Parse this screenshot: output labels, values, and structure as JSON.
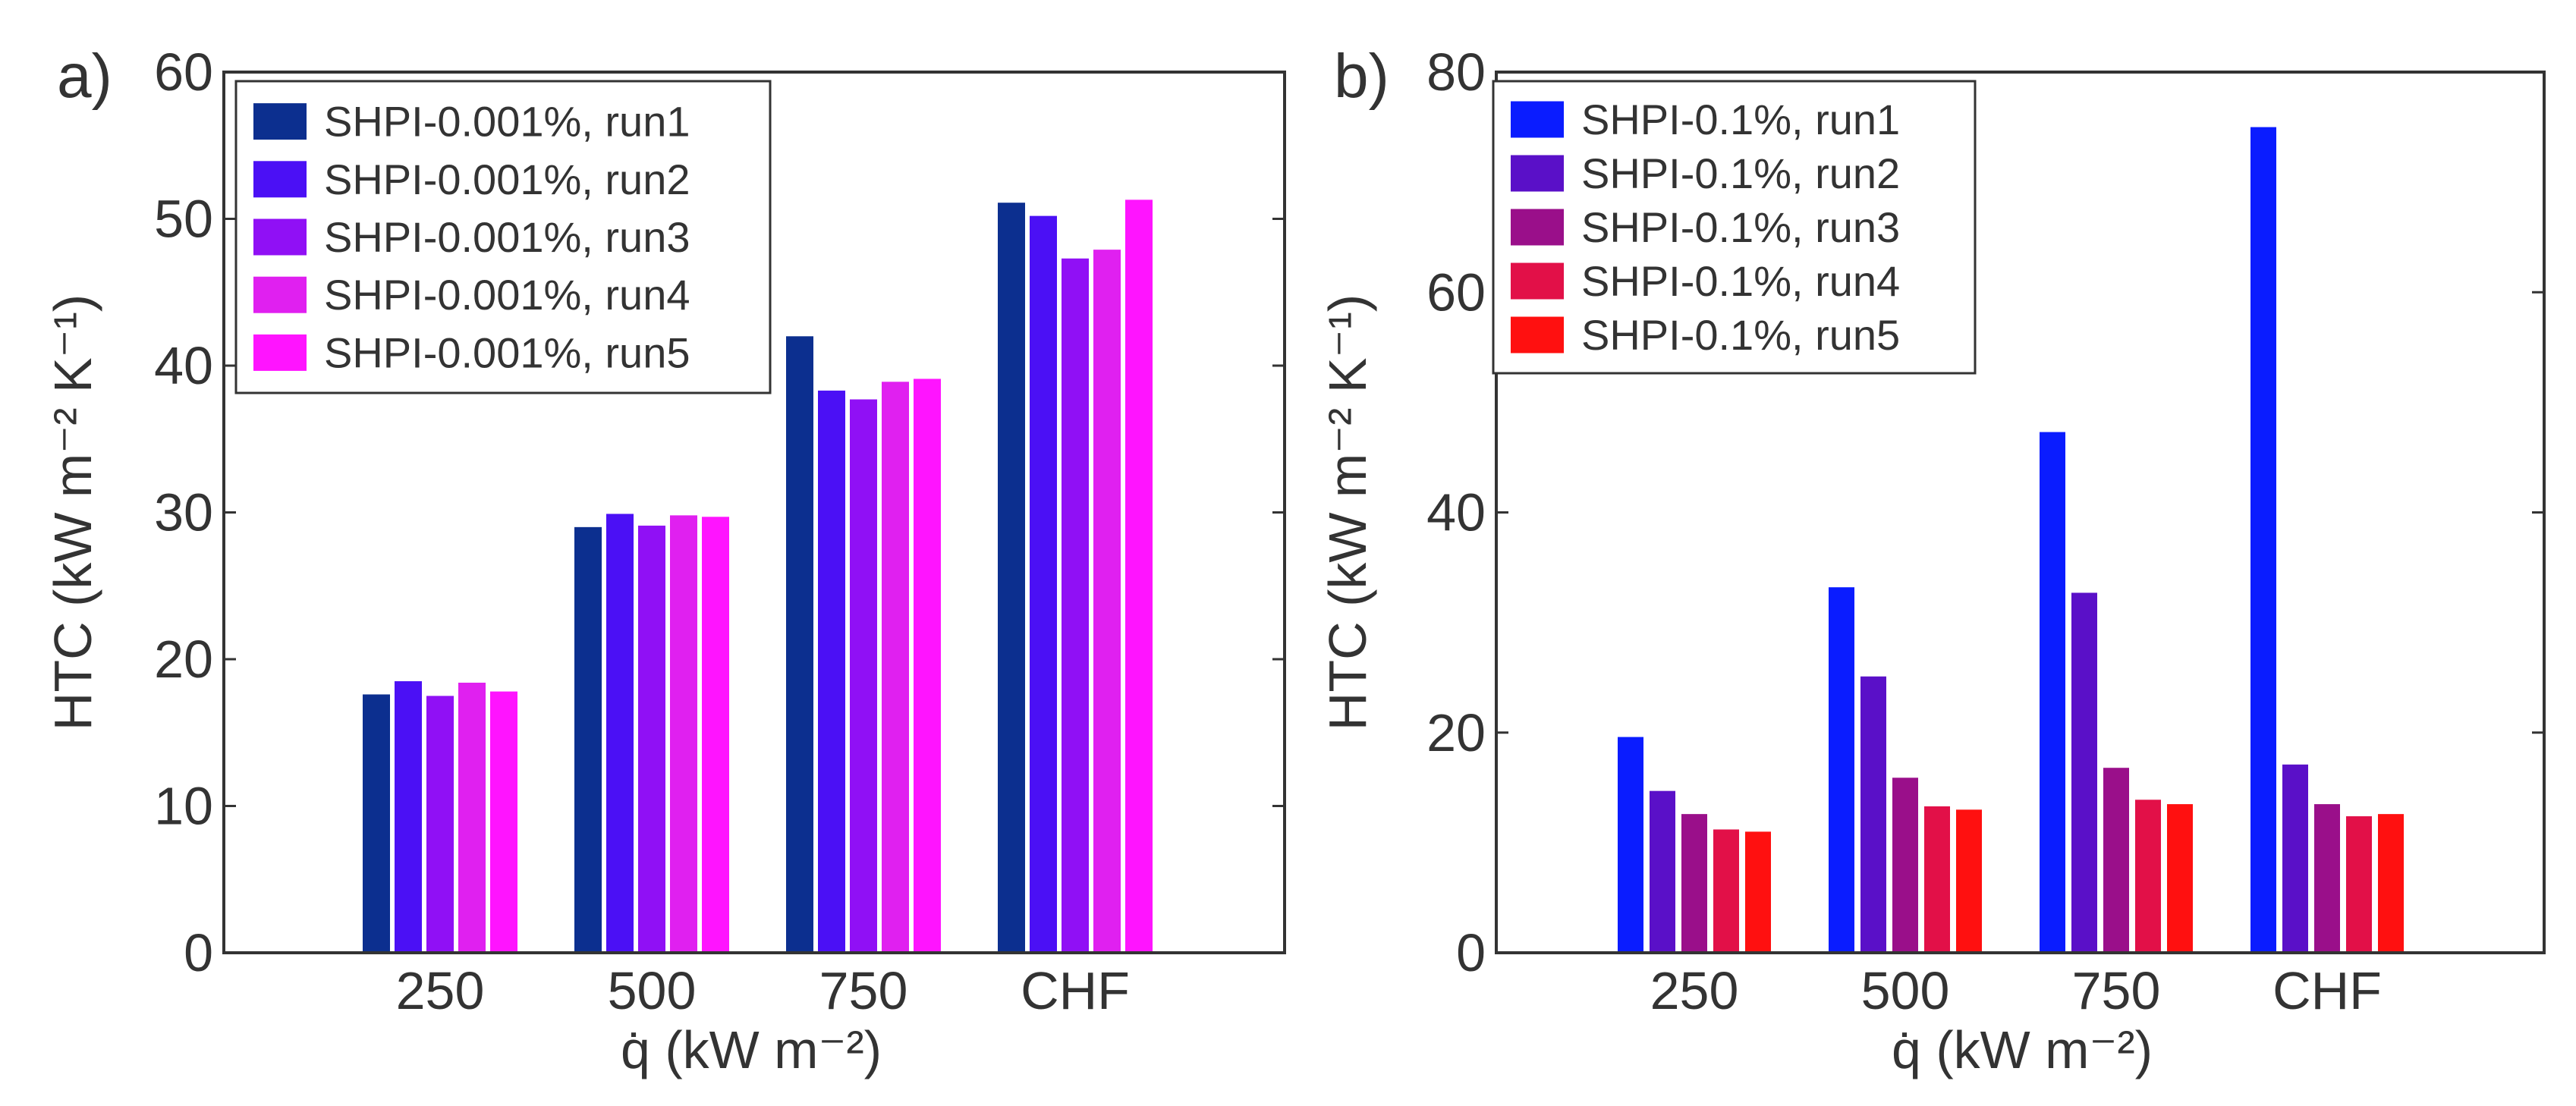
{
  "chart_data": [
    {
      "type": "bar",
      "panel_label": "a)",
      "categories": [
        "250",
        "500",
        "750",
        "CHF"
      ],
      "xlabel": "q̇ (kW m⁻²)",
      "ylabel": "HTC (kW m⁻² K⁻¹)",
      "ylim": [
        0,
        60
      ],
      "yticks": [
        0,
        10,
        20,
        30,
        40,
        50,
        60
      ],
      "grid": false,
      "legend_position": "top-left",
      "series": [
        {
          "name": "SHPI-0.001%, run1",
          "color": "#0c2f8f",
          "values": [
            17.6,
            29.0,
            42.0,
            51.1
          ]
        },
        {
          "name": "SHPI-0.001%, run2",
          "color": "#4b10f5",
          "values": [
            18.5,
            29.9,
            38.3,
            50.2
          ]
        },
        {
          "name": "SHPI-0.001%, run3",
          "color": "#9010f5",
          "values": [
            17.5,
            29.1,
            37.7,
            47.3
          ]
        },
        {
          "name": "SHPI-0.001%, run4",
          "color": "#e020f0",
          "values": [
            18.4,
            29.8,
            38.9,
            47.9
          ]
        },
        {
          "name": "SHPI-0.001%, run5",
          "color": "#ff14ff",
          "values": [
            17.8,
            29.7,
            39.1,
            51.3
          ]
        }
      ]
    },
    {
      "type": "bar",
      "panel_label": "b)",
      "categories": [
        "250",
        "500",
        "750",
        "CHF"
      ],
      "xlabel": "q̇ (kW m⁻²)",
      "ylabel": "HTC (kW m⁻² K⁻¹)",
      "ylim": [
        0,
        80
      ],
      "yticks": [
        0,
        20,
        40,
        60,
        80
      ],
      "grid": false,
      "legend_position": "top-left",
      "series": [
        {
          "name": "SHPI-0.1%, run1",
          "color": "#0a1cff",
          "values": [
            19.6,
            33.2,
            47.3,
            75.0
          ]
        },
        {
          "name": "SHPI-0.1%, run2",
          "color": "#5a10c8",
          "values": [
            14.7,
            25.1,
            32.7,
            17.1
          ]
        },
        {
          "name": "SHPI-0.1%, run3",
          "color": "#9a0f8a",
          "values": [
            12.6,
            15.9,
            16.8,
            13.5
          ]
        },
        {
          "name": "SHPI-0.1%, run4",
          "color": "#e21048",
          "values": [
            11.2,
            13.3,
            13.9,
            12.4
          ]
        },
        {
          "name": "SHPI-0.1%, run5",
          "color": "#ff1010",
          "values": [
            11.0,
            13.0,
            13.5,
            12.6
          ]
        }
      ]
    }
  ]
}
